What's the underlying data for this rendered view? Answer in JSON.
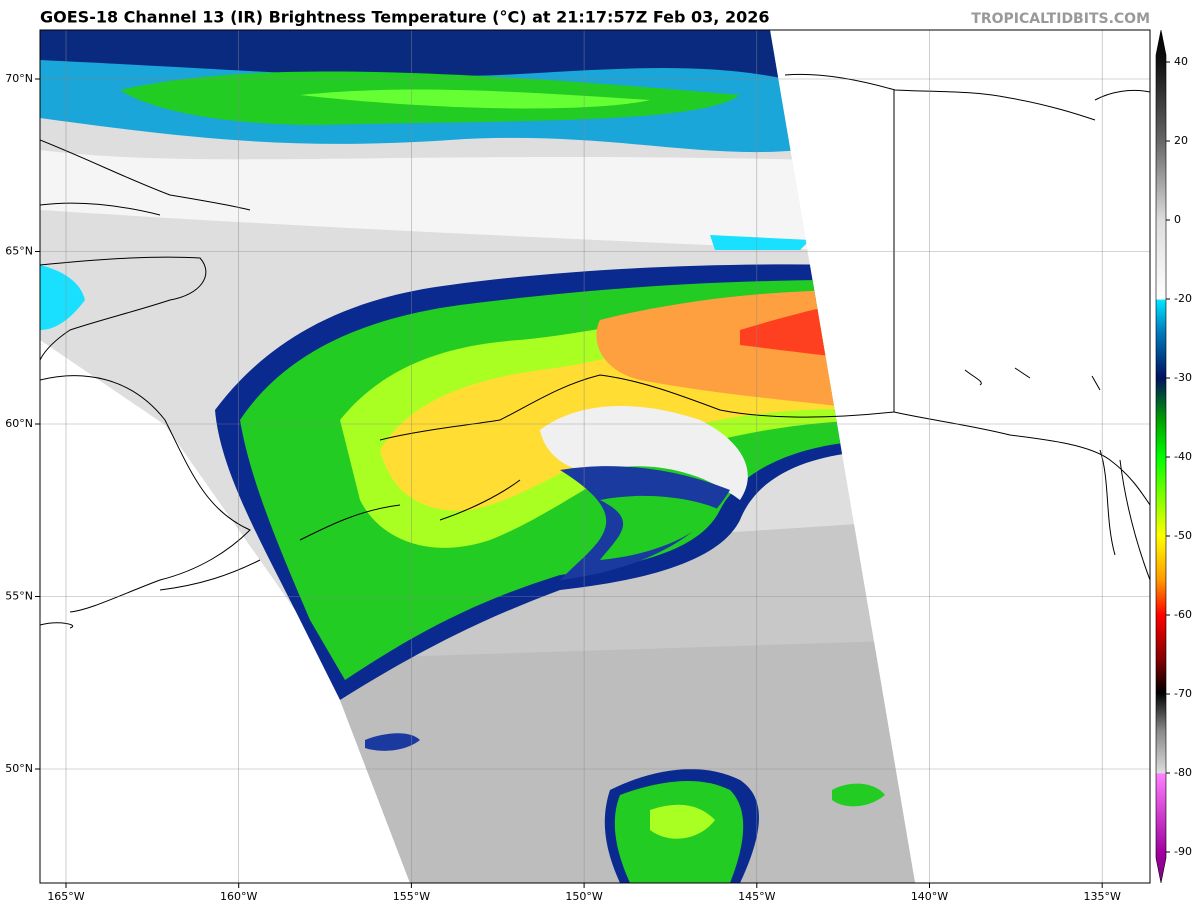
{
  "header": {
    "title": "GOES-18 Channel 13 (IR) Brightness Temperature (°C) at 21:17:57Z Feb 03, 2026",
    "credit": "TROPICALTIDBITS.COM"
  },
  "map": {
    "lon_labels": [
      "165°W",
      "160°W",
      "155°W",
      "150°W",
      "145°W",
      "140°W",
      "135°W"
    ],
    "lat_labels": [
      "70°N",
      "65°N",
      "60°N",
      "55°N",
      "50°N"
    ]
  },
  "colorbar": {
    "ticks": [
      40,
      20,
      0,
      -20,
      -30,
      -40,
      -50,
      -60,
      -70,
      -80,
      -90
    ]
  }
}
